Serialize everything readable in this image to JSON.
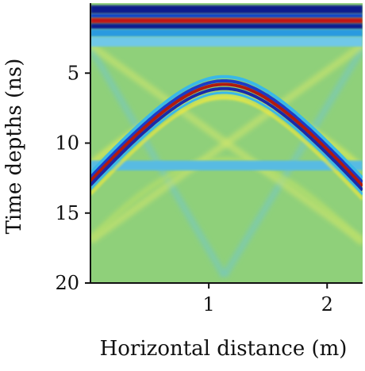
{
  "chart_data": {
    "type": "heatmap",
    "title": "",
    "xlabel": "Horizontal distance (m)",
    "ylabel": "Time depths (ns)",
    "xlim": [
      0,
      2.3
    ],
    "ylim": [
      0,
      20
    ],
    "y_inverted": true,
    "x_ticks": [
      {
        "value": 1,
        "label": "1"
      },
      {
        "value": 2,
        "label": "2"
      }
    ],
    "y_ticks": [
      {
        "value": 5,
        "label": "5"
      },
      {
        "value": 10,
        "label": "10"
      },
      {
        "value": 15,
        "label": "15"
      },
      {
        "value": 20,
        "label": "20"
      }
    ],
    "colormap": "jet",
    "background_color": "#8fd07a",
    "direct_wave_bands": [
      {
        "t_start": 0.15,
        "t_end": 0.75,
        "color": "#0a1a8c"
      },
      {
        "t_start": 0.75,
        "t_end": 1.05,
        "color": "#1040c8"
      },
      {
        "t_start": 1.05,
        "t_end": 1.45,
        "color": "#c01818"
      },
      {
        "t_start": 1.45,
        "t_end": 1.85,
        "color": "#101c90"
      },
      {
        "t_start": 1.85,
        "t_end": 2.4,
        "color": "#2a9ae0"
      },
      {
        "t_start": 2.4,
        "t_end": 3.1,
        "color": "#70c8e8"
      }
    ],
    "hyperbola": {
      "apex_x": 1.13,
      "apex_t": 5.8,
      "velocity_m_per_ns": 0.1,
      "x_range": [
        0,
        2.3
      ],
      "colors": [
        "#3ab8e8",
        "#1a3cc8",
        "#b01a10",
        "#1a2aa8",
        "#3ab8e8"
      ]
    },
    "ghost_hyperbolas": [
      {
        "apex_x": 1.13,
        "apex_t": 11.2,
        "velocity_m_per_ns": 0.09,
        "color": "#b8df6a"
      },
      {
        "apex_x": 1.13,
        "apex_t": 6.6,
        "velocity_m_per_ns": 0.12,
        "color": "#e4ec55"
      }
    ],
    "horizontal_band": {
      "t": 11.6,
      "thickness": 0.7,
      "color": "#58bbe2"
    },
    "diagonal_faint_lines": [
      {
        "from": [
          0,
          3.2
        ],
        "to": [
          1.13,
          19.5
        ],
        "color": "#72c6c8"
      },
      {
        "from": [
          2.3,
          3.2
        ],
        "to": [
          1.13,
          19.5
        ],
        "color": "#72c6c8"
      },
      {
        "from": [
          0,
          3.0
        ],
        "to": [
          2.3,
          17.0
        ],
        "color": "#d6e86a"
      },
      {
        "from": [
          2.3,
          3.0
        ],
        "to": [
          0,
          17.0
        ],
        "color": "#d6e86a"
      }
    ]
  }
}
